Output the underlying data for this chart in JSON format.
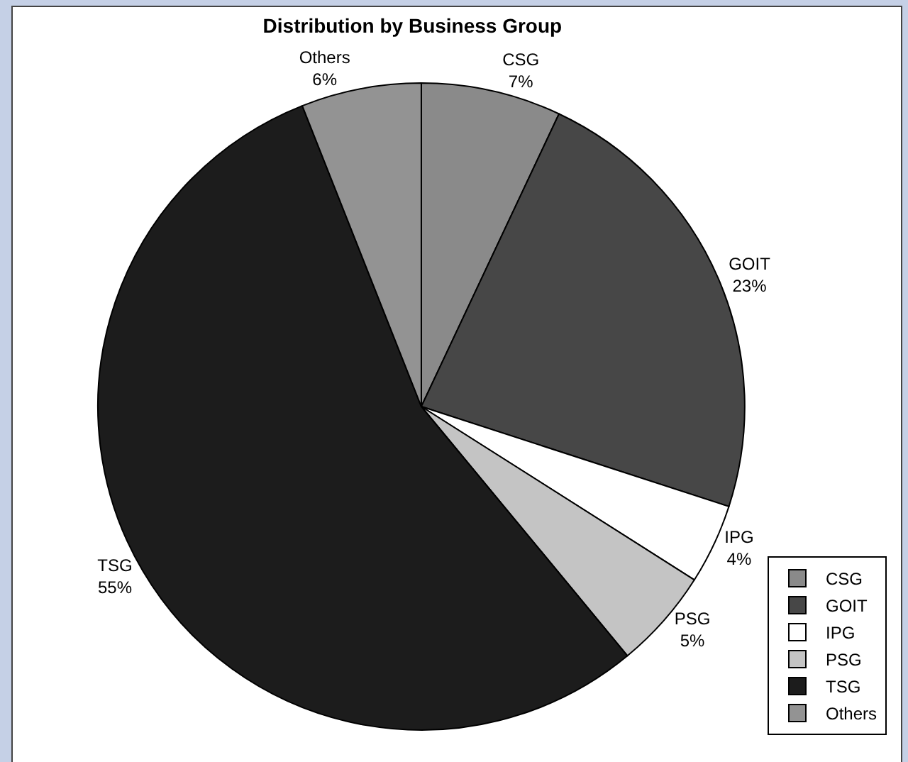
{
  "chart_data": {
    "type": "pie",
    "title": "Distribution by Business Group",
    "categories": [
      "CSG",
      "GOIT",
      "IPG",
      "PSG",
      "TSG",
      "Others"
    ],
    "values": [
      7,
      23,
      4,
      5,
      55,
      6
    ],
    "value_labels": [
      "7%",
      "23%",
      "4%",
      "5%",
      "55%",
      "6%"
    ],
    "colors": [
      "#8a8a8a",
      "#474747",
      "#ffffff",
      "#c4c4c4",
      "#1c1c1c",
      "#939393"
    ],
    "legend": "bottom right"
  }
}
